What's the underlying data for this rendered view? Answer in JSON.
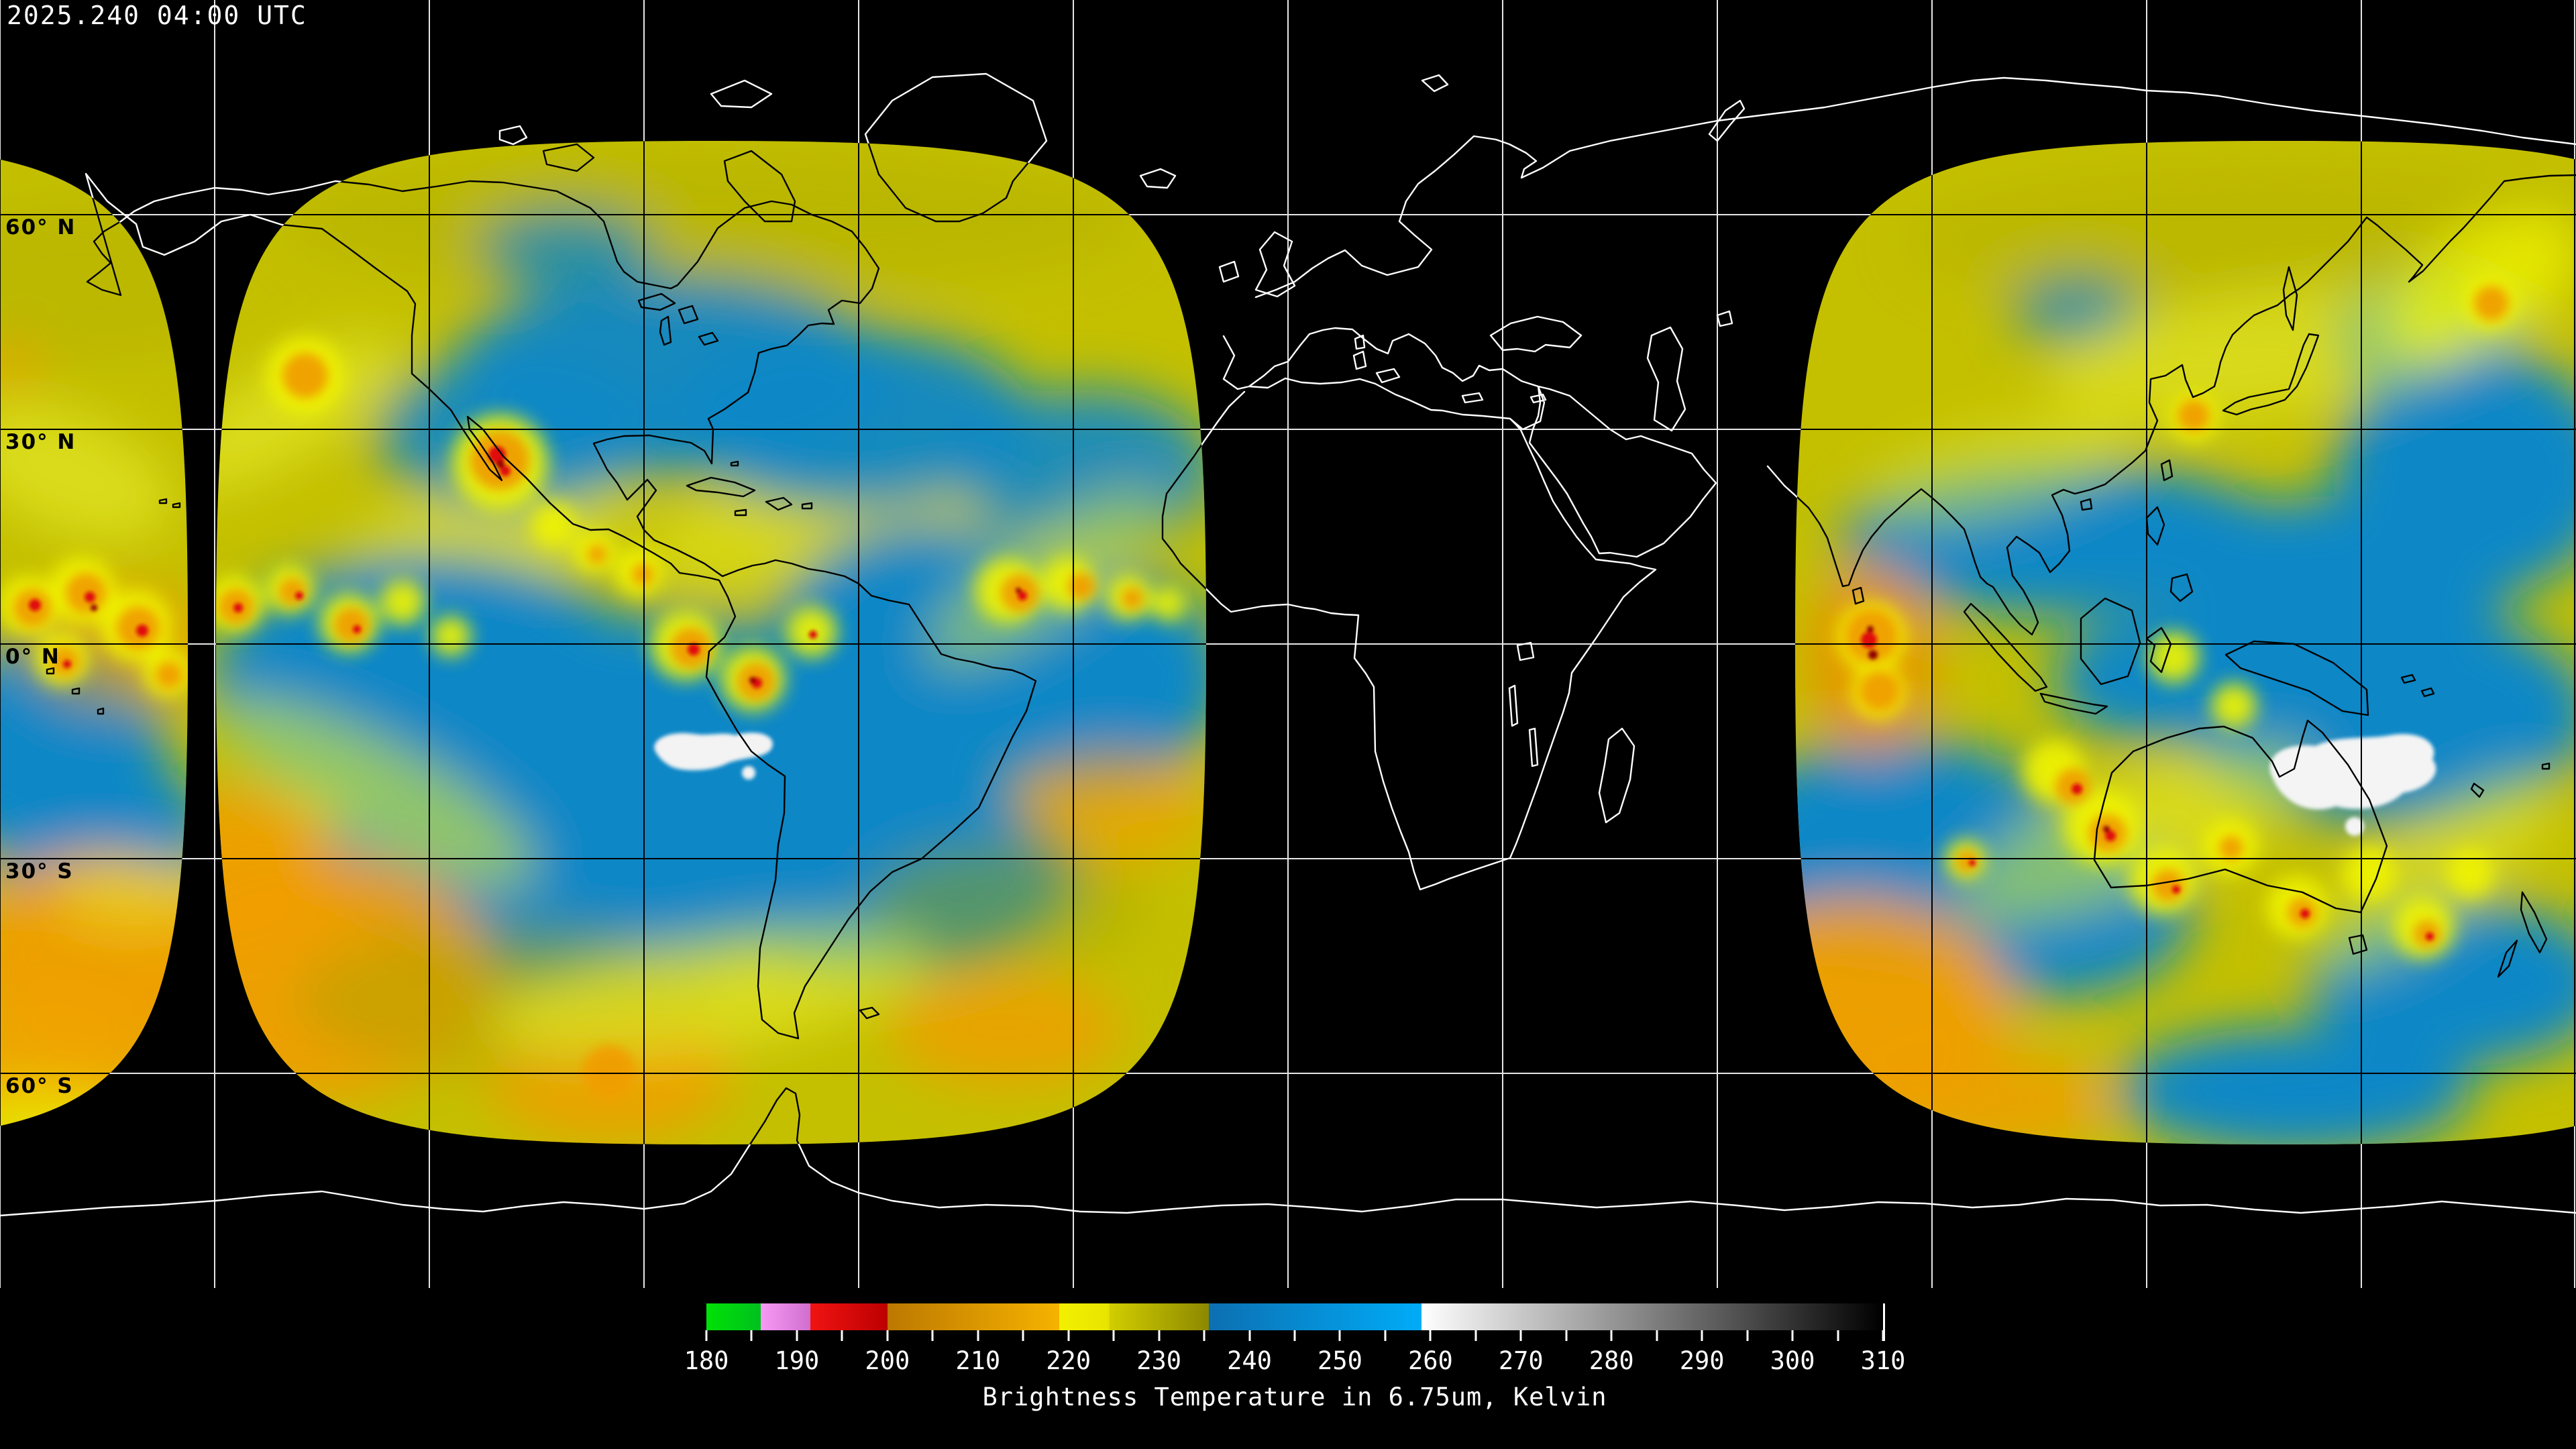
{
  "title_bar": {
    "timestamp": "2025.240 04:00 UTC"
  },
  "map": {
    "background_color": "#000000",
    "latitude_labels": [
      {
        "text": "60° N"
      },
      {
        "text": "30° N"
      },
      {
        "text": "0° N"
      },
      {
        "text": "30° S"
      },
      {
        "text": "60° S"
      }
    ],
    "graticule": {
      "lon_spacing_deg": 30,
      "lat_spacing_deg": 30,
      "color_over_background": "#e6e6e6",
      "color_over_data": "#000000"
    },
    "coastlines": {
      "color_over_background": "#ffffff",
      "color_over_data": "#000000"
    },
    "swath_palette": {
      "base_yellow": "#c4c000",
      "moist_blue": "#0b87c6",
      "cold_bright_yellow": "#eff300",
      "cold_orange": "#ef9d00",
      "cold_red": "#e01010",
      "coldest_dark_red": "#8f0404",
      "warm_white": "#f3f3f3"
    }
  },
  "colorbar": {
    "title": "Brightness Temperature in 6.75um, Kelvin",
    "min": 180,
    "max": 310,
    "tick_step": 5,
    "label_step": 10,
    "tick_labels": [
      "180",
      "190",
      "200",
      "210",
      "220",
      "230",
      "240",
      "250",
      "260",
      "270",
      "280",
      "290",
      "300",
      "310"
    ],
    "gradient_stops": [
      {
        "value": 180,
        "color": "#00e206"
      },
      {
        "value": 186,
        "color": "#00c01e"
      },
      {
        "value": 186,
        "color": "#f79af4"
      },
      {
        "value": 191.5,
        "color": "#d06ecf"
      },
      {
        "value": 191.5,
        "color": "#f01313"
      },
      {
        "value": 200,
        "color": "#bd0000"
      },
      {
        "value": 200,
        "color": "#bc7800"
      },
      {
        "value": 219,
        "color": "#f6b300"
      },
      {
        "value": 219,
        "color": "#f3f000"
      },
      {
        "value": 224.5,
        "color": "#e8e400"
      },
      {
        "value": 224.5,
        "color": "#d2ce00"
      },
      {
        "value": 235.5,
        "color": "#8c8800"
      },
      {
        "value": 235.5,
        "color": "#0c6fb2"
      },
      {
        "value": 259,
        "color": "#00acf7"
      },
      {
        "value": 259,
        "color": "#ffffff"
      },
      {
        "value": 310,
        "color": "#000000"
      }
    ]
  }
}
